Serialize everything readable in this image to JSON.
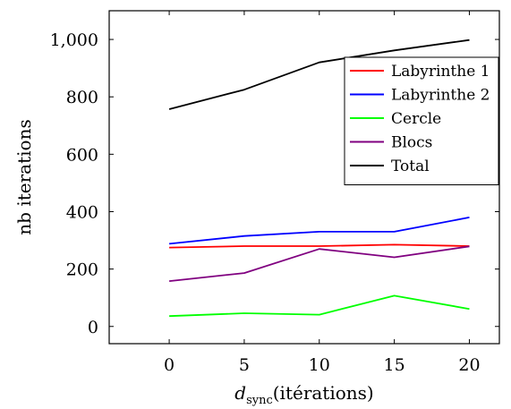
{
  "chart_data": {
    "type": "line",
    "x": [
      0,
      5,
      10,
      15,
      20
    ],
    "series": [
      {
        "name": "Labyrinthe 1",
        "color": "#ff0000",
        "values": [
          275,
          280,
          280,
          285,
          280
        ]
      },
      {
        "name": "Labyrinthe 2",
        "color": "#0000ff",
        "values": [
          288,
          315,
          330,
          330,
          380
        ]
      },
      {
        "name": "Cercle",
        "color": "#00ff00",
        "values": [
          36,
          46,
          41,
          107,
          61
        ]
      },
      {
        "name": "Blocs",
        "color": "#800080",
        "values": [
          158,
          186,
          270,
          241,
          279
        ]
      },
      {
        "name": "Total",
        "color": "#000000",
        "values": [
          757,
          825,
          920,
          962,
          998
        ]
      }
    ],
    "xlabel_main": "d",
    "xlabel_sub": "sync",
    "xlabel_rest": "(itérations)",
    "ylabel": "nb iterations",
    "xlim": [
      -4,
      22
    ],
    "ylim": [
      -60,
      1100
    ],
    "xticks": [
      0,
      5,
      10,
      15,
      20
    ],
    "xtick_labels": [
      "0",
      "5",
      "10",
      "15",
      "20"
    ],
    "yticks": [
      0,
      200,
      400,
      600,
      800,
      1000
    ],
    "ytick_labels": [
      "0",
      "200",
      "400",
      "600",
      "800",
      "1,000"
    ],
    "legend_position": "upper-right",
    "grid": false
  }
}
